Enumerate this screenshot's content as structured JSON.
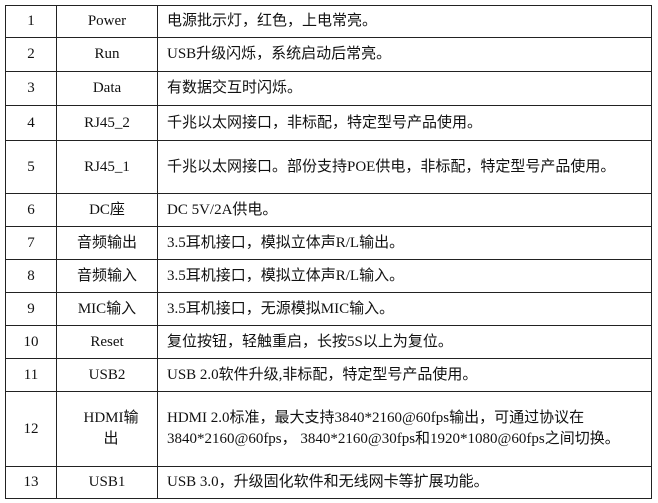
{
  "rows": [
    {
      "no": "1",
      "name": "Power",
      "desc": "电源批示灯，红色，上电常亮。"
    },
    {
      "no": "2",
      "name": "Run",
      "desc": "USB升级闪烁，系统启动后常亮。"
    },
    {
      "no": "3",
      "name": "Data",
      "desc": "有数据交互时闪烁。"
    },
    {
      "no": "4",
      "name": "RJ45_2",
      "desc": "千兆以太网接口，非标配，特定型号产品使用。"
    },
    {
      "no": "5",
      "name": "RJ45_1",
      "desc": "千兆以太网接口。部份支持POE供电，非标配，特定型号产品使用。"
    },
    {
      "no": "6",
      "name": "DC座",
      "desc": "DC 5V/2A供电。"
    },
    {
      "no": "7",
      "name": "音频输出",
      "desc": "3.5耳机接口，模拟立体声R/L输出。"
    },
    {
      "no": "8",
      "name": "音频输入",
      "desc": "3.5耳机接口，模拟立体声R/L输入。"
    },
    {
      "no": "9",
      "name": "MIC输入",
      "desc": "3.5耳机接口，无源模拟MIC输入。"
    },
    {
      "no": "10",
      "name": "Reset",
      "desc": "复位按钮，轻触重启，长按5S以上为复位。"
    },
    {
      "no": "11",
      "name": "USB2",
      "desc": "USB 2.0软件升级,非标配，特定型号产品使用。"
    },
    {
      "no": "12",
      "name": "HDMI输出",
      "desc": "HDMI 2.0标准，最大支持3840*2160@60fps输出，可通过协议在3840*2160@60fps， 3840*2160@30fps和1920*1080@60fps之间切换。"
    },
    {
      "no": "13",
      "name": "USB1",
      "desc": "USB 3.0，升级固化软件和无线网卡等扩展功能。"
    }
  ]
}
